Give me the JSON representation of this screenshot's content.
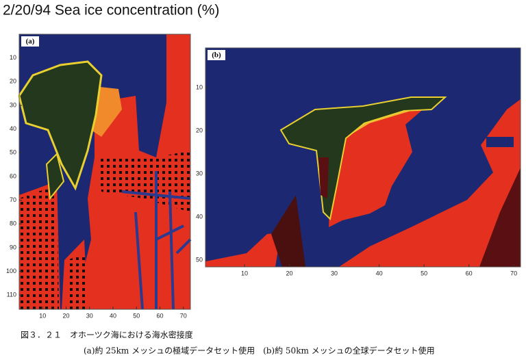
{
  "title": "2/20/94 Sea ice concentration (%)",
  "chart_data": [
    {
      "type": "heatmap",
      "label": "(a)",
      "xlim": [
        0,
        73
      ],
      "ylim": [
        0,
        116
      ],
      "xticks": [
        10,
        20,
        30,
        40,
        50,
        60,
        70
      ],
      "yticks": [
        10,
        20,
        30,
        40,
        50,
        60,
        70,
        80,
        90,
        100,
        110
      ]
    },
    {
      "type": "heatmap",
      "label": "(b)",
      "xlim": [
        1.3,
        71.5
      ],
      "ylim": [
        0.8,
        51.6
      ],
      "xticks": [
        10,
        20,
        30,
        40,
        50,
        60,
        70
      ],
      "yticks": [
        10,
        20,
        30,
        40,
        50
      ]
    }
  ],
  "caption": {
    "line1": "図３．２１　オホーツク海における海水密接度",
    "line2": "(a)約 25km メッシュの極域データセット使用　(b)約 50km メッシュの全球データセット使用"
  }
}
